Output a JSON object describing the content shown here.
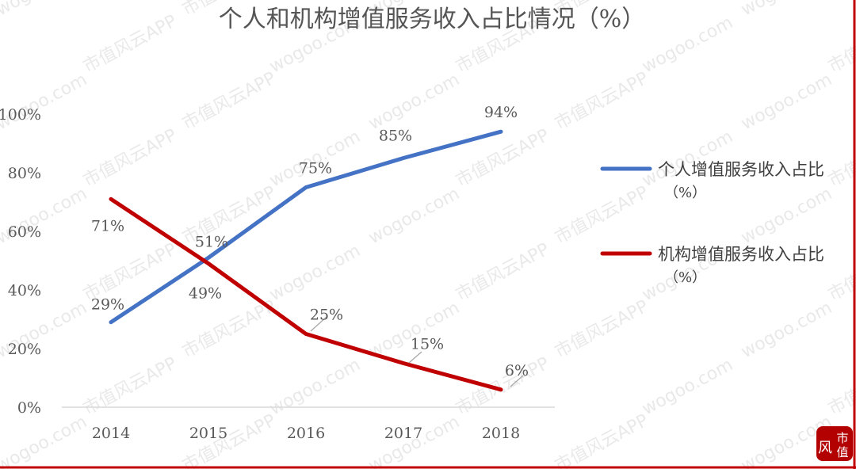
{
  "chart_data": {
    "type": "line",
    "title": "个人和机构增值服务收入占比情况（%）",
    "categories": [
      "2014",
      "2015",
      "2016",
      "2017",
      "2018"
    ],
    "y_ticks": [
      "0%",
      "20%",
      "40%",
      "60%",
      "80%",
      "100%"
    ],
    "ylim": [
      0,
      100
    ],
    "series": [
      {
        "name_line1": "个人增值服务收入占比",
        "name_line2": "（%）",
        "color": "#4472C4",
        "values": [
          29,
          51,
          75,
          85,
          94
        ],
        "labels": [
          "29%",
          "51%",
          "75%",
          "85%",
          "94%"
        ]
      },
      {
        "name_line1": "机构增值服务收入占比",
        "name_line2": "（%）",
        "color": "#C00000",
        "values": [
          71,
          49,
          25,
          15,
          6
        ],
        "labels": [
          "71%",
          "49%",
          "25%",
          "15%",
          "6%"
        ]
      }
    ],
    "legend_position": "right",
    "grid": false
  },
  "watermark": {
    "site": "wogoo.com",
    "brand": "市值风云APP",
    "stamp_char_1": "风",
    "stamp_char_2": "市",
    "stamp_char_3": "值"
  },
  "colors": {
    "frame": "#c00000",
    "axis": "#d9d9d9"
  }
}
